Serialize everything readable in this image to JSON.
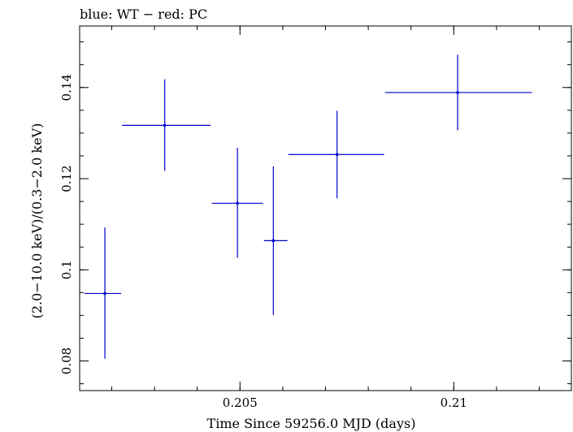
{
  "chart_data": {
    "type": "scatter",
    "title": "blue: WT − red: PC",
    "xlabel": "Time Since 59256.0 MJD (days)",
    "ylabel": "(2.0−10.0 keV)/(0.3−2.0 keV)",
    "xlim": [
      0.20125,
      0.21275
    ],
    "ylim": [
      0.0735,
      0.1535
    ],
    "x_ticks": [
      {
        "value": 0.205,
        "label": "0.205"
      },
      {
        "value": 0.21,
        "label": "0.21"
      }
    ],
    "y_ticks": [
      {
        "value": 0.08,
        "label": "0.08"
      },
      {
        "value": 0.1,
        "label": "0.1"
      },
      {
        "value": 0.12,
        "label": "0.12"
      },
      {
        "value": 0.14,
        "label": "0.14"
      }
    ],
    "x_minor_step": 0.001,
    "y_minor_step": 0.005,
    "grid": false,
    "series": [
      {
        "color": "#0000cc",
        "points": [
          {
            "x": 0.20184,
            "xerr_lo": 0.20136,
            "xerr_hi": 0.20222,
            "y": 0.0948,
            "yerr_lo": 0.0805,
            "yerr_hi": 0.1093
          },
          {
            "x": 0.20324,
            "xerr_lo": 0.20224,
            "xerr_hi": 0.20431,
            "y": 0.1317,
            "yerr_lo": 0.1217,
            "yerr_hi": 0.1418
          },
          {
            "x": 0.20494,
            "xerr_lo": 0.20434,
            "xerr_hi": 0.20554,
            "y": 0.1146,
            "yerr_lo": 0.1026,
            "yerr_hi": 0.1268
          },
          {
            "x": 0.20578,
            "xerr_lo": 0.20556,
            "xerr_hi": 0.20611,
            "y": 0.1064,
            "yerr_lo": 0.0901,
            "yerr_hi": 0.1227
          },
          {
            "x": 0.20727,
            "xerr_lo": 0.20613,
            "xerr_hi": 0.20837,
            "y": 0.1253,
            "yerr_lo": 0.1157,
            "yerr_hi": 0.1349
          },
          {
            "x": 0.21009,
            "xerr_lo": 0.20839,
            "xerr_hi": 0.21183,
            "y": 0.1389,
            "yerr_lo": 0.1306,
            "yerr_hi": 0.1472
          }
        ]
      }
    ]
  }
}
